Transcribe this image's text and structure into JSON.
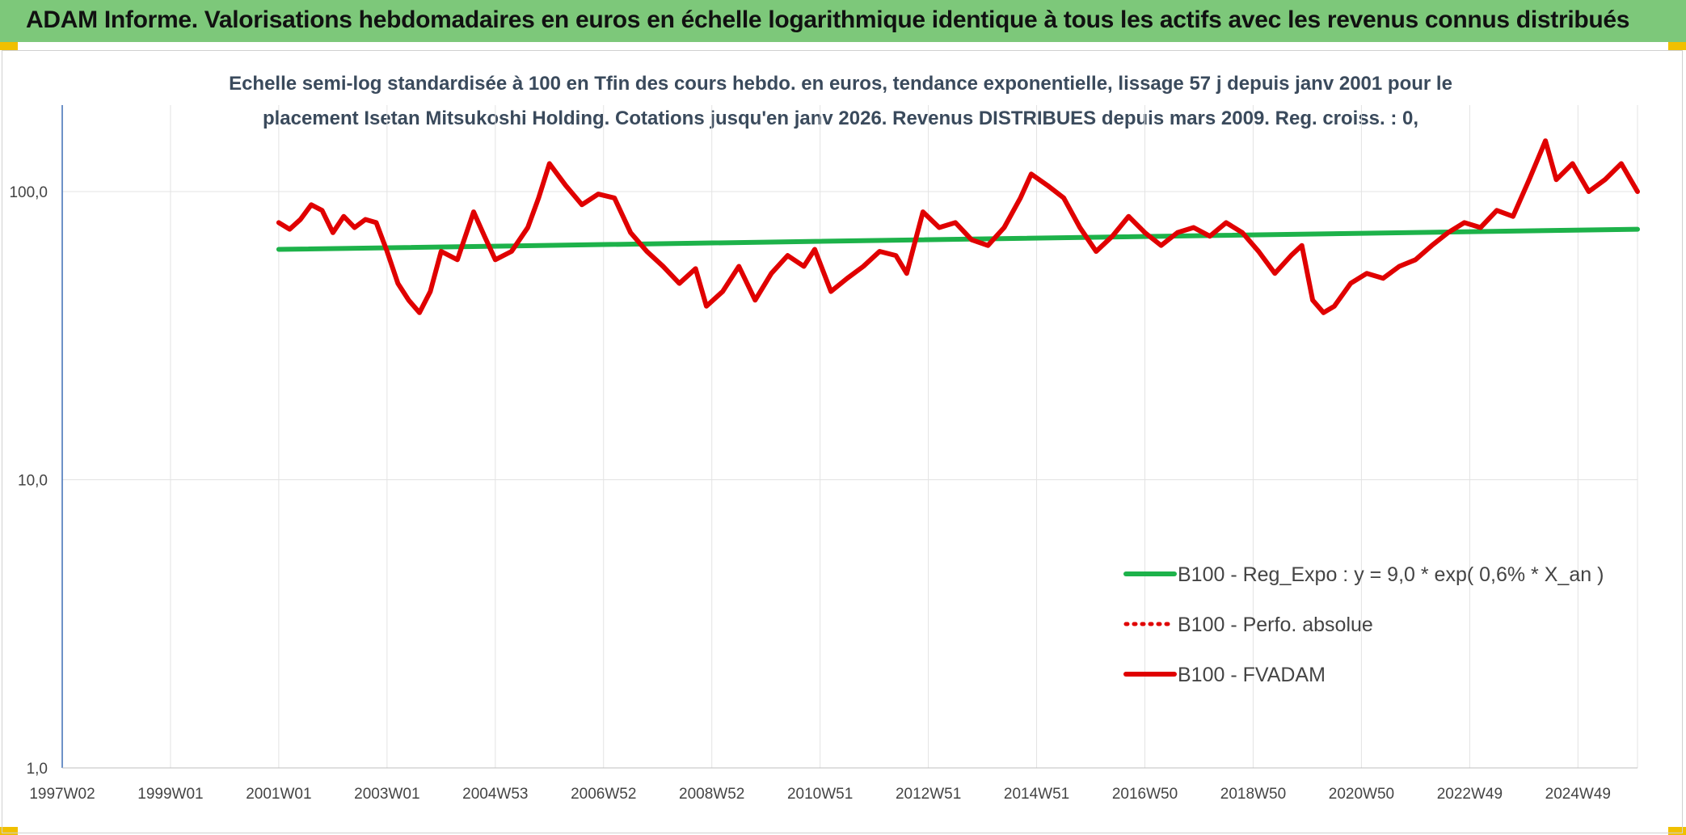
{
  "header": {
    "title": "ADAM Informe. Valorisations hebdomadaires en euros en échelle logarithmique identique à tous les actifs avec les revenus connus distribués"
  },
  "chart_data": {
    "type": "line",
    "title_line1": "Echelle semi-log standardisée à 100 en Tfin des cours hebdo. en euros, tendance exponentielle, lissage 57 j depuis janv 2001 pour le",
    "title_line2": "placement Isetan Mitsukoshi Holding. Cotations jusqu'en janv 2026. Revenus DISTRIBUES depuis mars 2009. Reg. croiss. : 0,",
    "y_scale": "log",
    "ylim": [
      1,
      200
    ],
    "y_ticks": [
      {
        "value": 1,
        "label": "1,0"
      },
      {
        "value": 10,
        "label": "10,0"
      },
      {
        "value": 100,
        "label": "100,0"
      }
    ],
    "x_range": [
      1997.0,
      2026.1
    ],
    "x_ticks": [
      {
        "value": 1997.0,
        "label": "1997W02"
      },
      {
        "value": 1999.0,
        "label": "1999W01"
      },
      {
        "value": 2001.0,
        "label": "2001W01"
      },
      {
        "value": 2003.0,
        "label": "2003W01"
      },
      {
        "value": 2005.0,
        "label": "2004W53"
      },
      {
        "value": 2007.0,
        "label": "2006W52"
      },
      {
        "value": 2009.0,
        "label": "2008W52"
      },
      {
        "value": 2011.0,
        "label": "2010W51"
      },
      {
        "value": 2013.0,
        "label": "2012W51"
      },
      {
        "value": 2015.0,
        "label": "2014W51"
      },
      {
        "value": 2017.0,
        "label": "2016W50"
      },
      {
        "value": 2019.0,
        "label": "2018W50"
      },
      {
        "value": 2021.0,
        "label": "2020W50"
      },
      {
        "value": 2023.0,
        "label": "2022W49"
      },
      {
        "value": 2025.0,
        "label": "2024W49"
      }
    ],
    "legend_position": "bottom-right",
    "series": [
      {
        "name": "B100 - Reg_Expo : y = 9,0 * exp( 0,6% *  X_an )",
        "color": "#1db24a",
        "style": "solid",
        "x": [
          2001.0,
          2026.1
        ],
        "values": [
          63,
          74
        ]
      },
      {
        "name": "B100 - Perfo. absolue",
        "color": "#e00000",
        "style": "dotted",
        "x": [],
        "values": []
      },
      {
        "name": "B100 - FVADAM",
        "color": "#e00000",
        "style": "solid",
        "x": [
          2001.0,
          2001.2,
          2001.4,
          2001.6,
          2001.8,
          2002.0,
          2002.2,
          2002.4,
          2002.6,
          2002.8,
          2003.0,
          2003.2,
          2003.4,
          2003.6,
          2003.8,
          2004.0,
          2004.3,
          2004.6,
          2004.8,
          2005.0,
          2005.3,
          2005.6,
          2005.8,
          2006.0,
          2006.3,
          2006.6,
          2006.9,
          2007.2,
          2007.5,
          2007.8,
          2008.1,
          2008.4,
          2008.7,
          2008.9,
          2009.2,
          2009.5,
          2009.8,
          2010.1,
          2010.4,
          2010.7,
          2010.9,
          2011.2,
          2011.5,
          2011.8,
          2012.1,
          2012.4,
          2012.6,
          2012.9,
          2013.2,
          2013.5,
          2013.8,
          2014.1,
          2014.4,
          2014.7,
          2014.9,
          2015.2,
          2015.5,
          2015.8,
          2016.1,
          2016.4,
          2016.7,
          2017.0,
          2017.3,
          2017.6,
          2017.9,
          2018.2,
          2018.5,
          2018.8,
          2019.1,
          2019.4,
          2019.7,
          2019.9,
          2020.1,
          2020.3,
          2020.5,
          2020.8,
          2021.1,
          2021.4,
          2021.7,
          2022.0,
          2022.3,
          2022.6,
          2022.9,
          2023.2,
          2023.5,
          2023.8,
          2024.1,
          2024.4,
          2024.6,
          2024.9,
          2025.2,
          2025.5,
          2025.8,
          2026.1
        ],
        "values": [
          78,
          74,
          80,
          90,
          86,
          72,
          82,
          75,
          80,
          78,
          62,
          48,
          42,
          38,
          45,
          62,
          58,
          85,
          70,
          58,
          62,
          75,
          95,
          125,
          105,
          90,
          98,
          95,
          72,
          62,
          55,
          48,
          54,
          40,
          45,
          55,
          42,
          52,
          60,
          55,
          63,
          45,
          50,
          55,
          62,
          60,
          52,
          85,
          75,
          78,
          68,
          65,
          75,
          95,
          115,
          105,
          95,
          75,
          62,
          70,
          82,
          72,
          65,
          72,
          75,
          70,
          78,
          72,
          62,
          52,
          60,
          65,
          42,
          38,
          40,
          48,
          52,
          50,
          55,
          58,
          65,
          72,
          78,
          75,
          86,
          82,
          110,
          150,
          110,
          125,
          100,
          110,
          125,
          100
        ]
      }
    ]
  }
}
